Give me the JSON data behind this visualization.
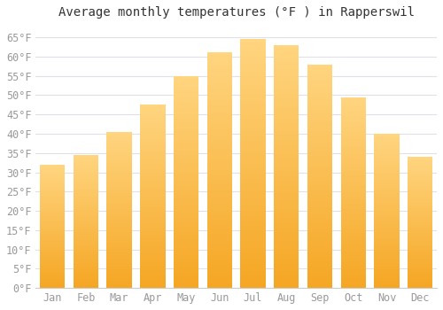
{
  "title": "Average monthly temperatures (°F ) in Rapperswil",
  "months": [
    "Jan",
    "Feb",
    "Mar",
    "Apr",
    "May",
    "Jun",
    "Jul",
    "Aug",
    "Sep",
    "Oct",
    "Nov",
    "Dec"
  ],
  "values": [
    32,
    34.5,
    40.5,
    47.5,
    55,
    61,
    64.5,
    63,
    58,
    49.5,
    40,
    34
  ],
  "bar_color_bottom": "#F5A623",
  "bar_color_top": "#FFD580",
  "ylim": [
    0,
    68
  ],
  "yticks": [
    0,
    5,
    10,
    15,
    20,
    25,
    30,
    35,
    40,
    45,
    50,
    55,
    60,
    65
  ],
  "ylabel_suffix": "°F",
  "background_color": "#FFFFFF",
  "plot_bg_color": "#FFFFFF",
  "grid_color": "#E0E0E8",
  "title_fontsize": 10,
  "tick_fontsize": 8.5,
  "tick_color": "#999999",
  "title_color": "#333333"
}
